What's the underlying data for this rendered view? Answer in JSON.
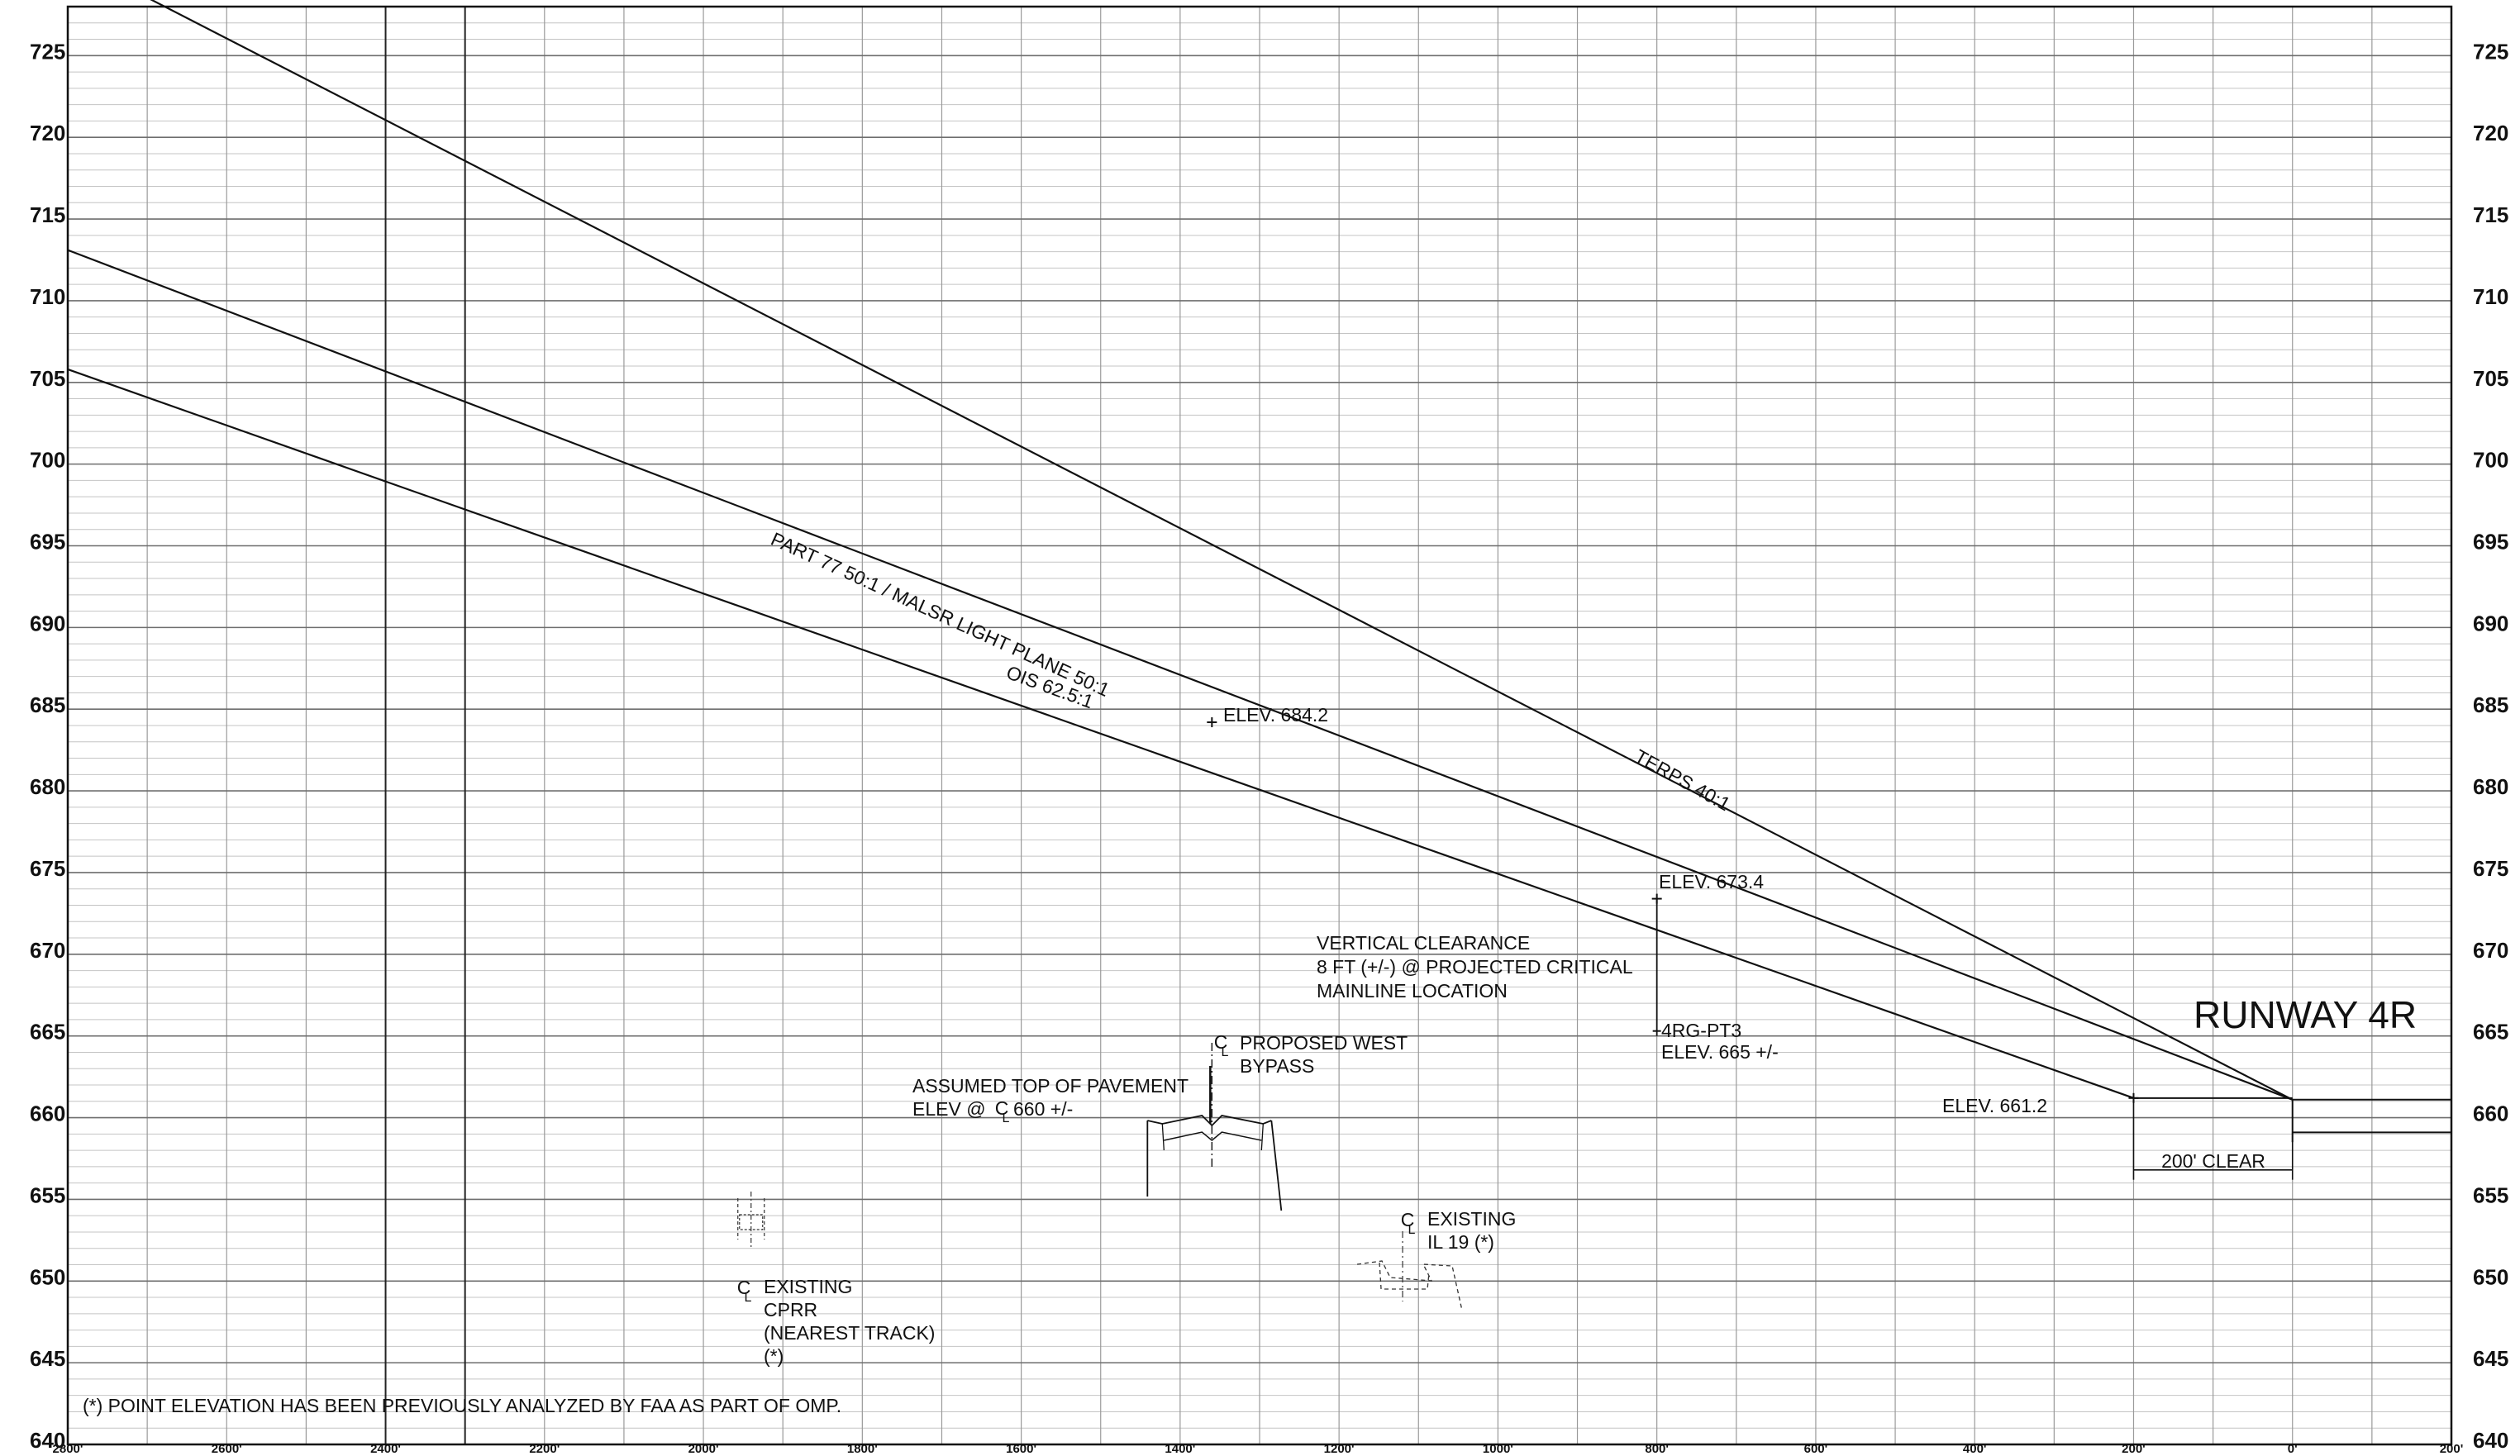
{
  "chart_data": {
    "type": "line",
    "x_axis": {
      "ticks": [
        "2800'",
        "2600'",
        "2400'",
        "2200'",
        "2000'",
        "1800'",
        "1600'",
        "1400'",
        "1200'",
        "1000'",
        "800'",
        "600'",
        "400'",
        "200'",
        "0'",
        "200'"
      ],
      "range_ft": [
        2800,
        -200
      ]
    },
    "y_axis": {
      "ticks": [
        "725",
        "720",
        "715",
        "710",
        "705",
        "700",
        "695",
        "690",
        "685",
        "680",
        "675",
        "670",
        "665",
        "660",
        "655",
        "650",
        "645",
        "640"
      ],
      "range_ft": [
        640,
        728
      ]
    },
    "grid": true,
    "series": [
      {
        "name": "TERPS 40:1",
        "points": [
          [
            2750,
            729.8
          ],
          [
            0,
            661.1
          ]
        ]
      },
      {
        "name": "PART 77 50:1 / MALSR LIGHT PLANE 50:1",
        "points": [
          [
            2800,
            713.1
          ],
          [
            0,
            661.1
          ]
        ]
      },
      {
        "name": "OIS 62.5:1",
        "points": [
          [
            2800,
            705.8
          ],
          [
            200,
            661.2
          ]
        ]
      }
    ],
    "points": [
      {
        "label": "ELEV. 684.2",
        "x": 1360,
        "y": 684.2
      },
      {
        "label": "ELEV. 673.4",
        "x": 800,
        "y": 673.4
      },
      {
        "label": "ELEV. 661.2",
        "x": 200,
        "y": 661.2
      }
    ],
    "annotations": {
      "line_labels": [
        "TERPS 40:1",
        "PART 77 50:1 / MALSR LIGHT PLANE 50:1",
        "OIS 62.5:1"
      ],
      "runway": "RUNWAY 4R",
      "clear_zone": "200' CLEAR",
      "vertical_clearance": [
        "VERTICAL CLEARANCE",
        "8 FT (+/-) @  PROJECTED CRITICAL",
        "MAINLINE LOCATION"
      ],
      "pt3": [
        "4RG-PT3",
        "ELEV. 665 +/-"
      ],
      "bypass": [
        "PROPOSED WEST",
        "BYPASS"
      ],
      "pavement": [
        "ASSUMED TOP OF PAVEMENT",
        "ELEV @",
        "660 +/-"
      ],
      "il19": [
        "EXISTING",
        "IL 19 (*)"
      ],
      "cprr": [
        "EXISTING",
        "CPRR",
        "(NEAREST TRACK)",
        "(*)"
      ],
      "footnote": "(*) POINT ELEVATION HAS BEEN PREVIOUSLY ANALYZED BY FAA AS PART OF OMP."
    }
  }
}
